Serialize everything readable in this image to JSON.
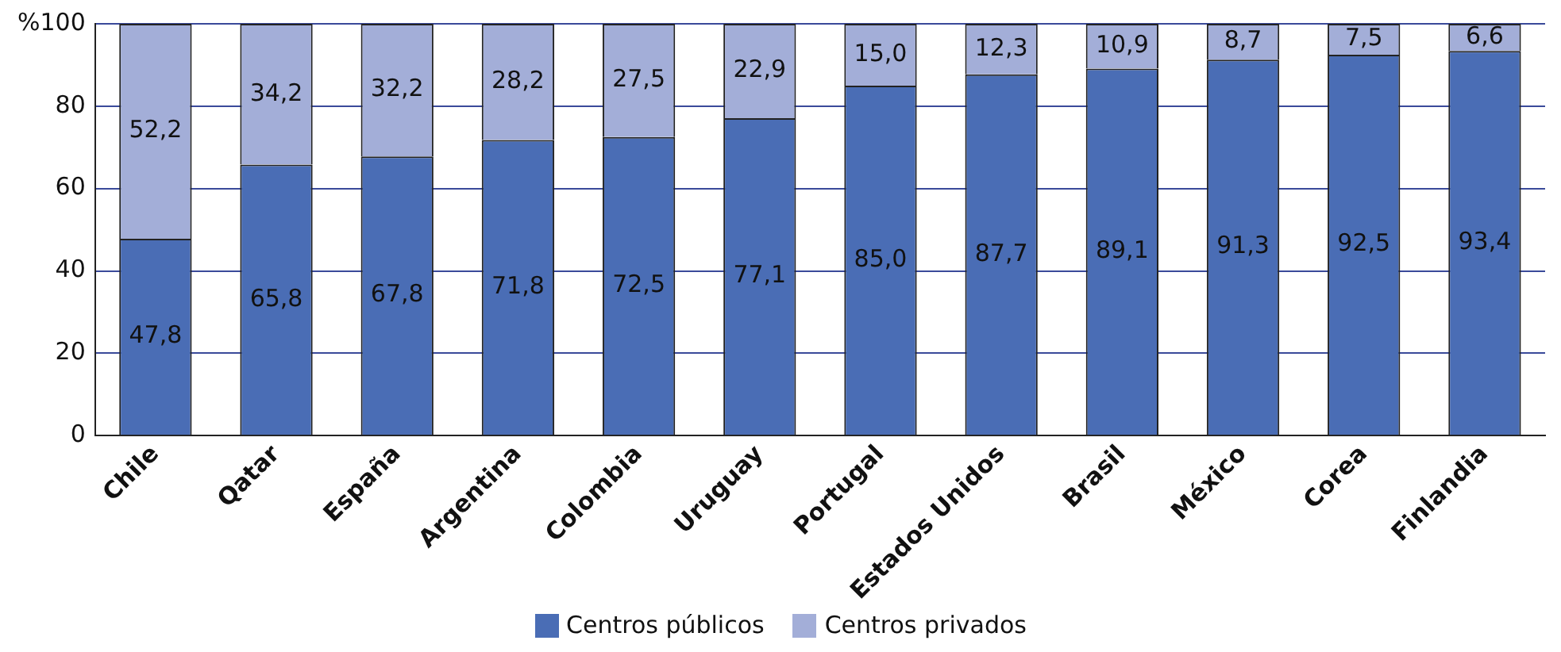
{
  "chart_data": {
    "type": "bar",
    "stacked": true,
    "categories": [
      "Chile",
      "Qatar",
      "España",
      "Argentina",
      "Colombia",
      "Uruguay",
      "Portugal",
      "Estados Unidos",
      "Brasil",
      "México",
      "Corea",
      "Finlandia"
    ],
    "series": [
      {
        "name": "Centros públicos",
        "color": "#4a6db5",
        "values": [
          47.8,
          65.8,
          67.8,
          71.8,
          72.5,
          77.1,
          85.0,
          87.7,
          89.1,
          91.3,
          92.5,
          93.4
        ],
        "value_labels": [
          "47,8",
          "65,8",
          "67,8",
          "71,8",
          "72,5",
          "77,1",
          "85,0",
          "87,7",
          "89,1",
          "91,3",
          "92,5",
          "93,4"
        ]
      },
      {
        "name": "Centros privados",
        "color": "#a3aed8",
        "values": [
          52.2,
          34.2,
          32.2,
          28.2,
          27.5,
          22.9,
          15.0,
          12.3,
          10.9,
          8.7,
          7.5,
          6.6
        ],
        "value_labels": [
          "52,2",
          "34,2",
          "32,2",
          "28,2",
          "27,5",
          "22,9",
          "15,0",
          "12,3",
          "10,9",
          "8,7",
          "7,5",
          "6,6"
        ]
      }
    ],
    "ylim": [
      0,
      100
    ],
    "yticks": [
      0,
      20,
      40,
      60,
      80,
      {
        "value": 100,
        "label": "%100"
      }
    ],
    "grid": "y",
    "legend": "bottom"
  }
}
